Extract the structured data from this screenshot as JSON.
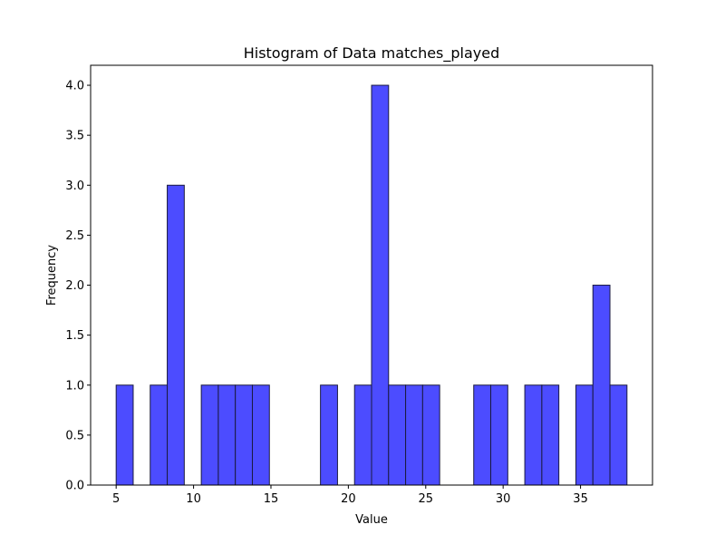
{
  "chart_data": {
    "type": "bar",
    "title": "Histogram of Data matches_played",
    "xlabel": "Value",
    "ylabel": "Frequency",
    "xlim": [
      3.35,
      39.65
    ],
    "ylim": [
      0,
      4.2
    ],
    "bin_width": 1.1,
    "bins": [
      {
        "start": 5.0,
        "end": 6.1,
        "count": 1
      },
      {
        "start": 7.2,
        "end": 8.3,
        "count": 1
      },
      {
        "start": 8.3,
        "end": 9.4,
        "count": 3
      },
      {
        "start": 10.5,
        "end": 11.6,
        "count": 1
      },
      {
        "start": 11.6,
        "end": 12.7,
        "count": 1
      },
      {
        "start": 12.7,
        "end": 13.8,
        "count": 1
      },
      {
        "start": 13.8,
        "end": 14.9,
        "count": 1
      },
      {
        "start": 18.2,
        "end": 19.3,
        "count": 1
      },
      {
        "start": 20.4,
        "end": 21.5,
        "count": 1
      },
      {
        "start": 21.5,
        "end": 22.6,
        "count": 4
      },
      {
        "start": 22.6,
        "end": 23.7,
        "count": 1
      },
      {
        "start": 23.7,
        "end": 24.8,
        "count": 1
      },
      {
        "start": 24.8,
        "end": 25.9,
        "count": 1
      },
      {
        "start": 28.1,
        "end": 29.2,
        "count": 1
      },
      {
        "start": 29.2,
        "end": 30.3,
        "count": 1
      },
      {
        "start": 31.4,
        "end": 32.5,
        "count": 1
      },
      {
        "start": 32.5,
        "end": 33.6,
        "count": 1
      },
      {
        "start": 34.7,
        "end": 35.8,
        "count": 1
      },
      {
        "start": 35.8,
        "end": 36.9,
        "count": 2
      },
      {
        "start": 36.9,
        "end": 38.0,
        "count": 1
      }
    ],
    "x_ticks": [
      {
        "value": 5,
        "label": "5"
      },
      {
        "value": 10,
        "label": "10"
      },
      {
        "value": 15,
        "label": "15"
      },
      {
        "value": 20,
        "label": "20"
      },
      {
        "value": 25,
        "label": "25"
      },
      {
        "value": 30,
        "label": "30"
      },
      {
        "value": 35,
        "label": "35"
      }
    ],
    "y_ticks": [
      {
        "value": 0.0,
        "label": "0.0"
      },
      {
        "value": 0.5,
        "label": "0.5"
      },
      {
        "value": 1.0,
        "label": "1.0"
      },
      {
        "value": 1.5,
        "label": "1.5"
      },
      {
        "value": 2.0,
        "label": "2.0"
      },
      {
        "value": 2.5,
        "label": "2.5"
      },
      {
        "value": 3.0,
        "label": "3.0"
      },
      {
        "value": 3.5,
        "label": "3.5"
      },
      {
        "value": 4.0,
        "label": "4.0"
      }
    ],
    "bar_color": "#4c4cff",
    "bar_edge_color": "#1a1a40",
    "grid": false,
    "legend": "none"
  }
}
